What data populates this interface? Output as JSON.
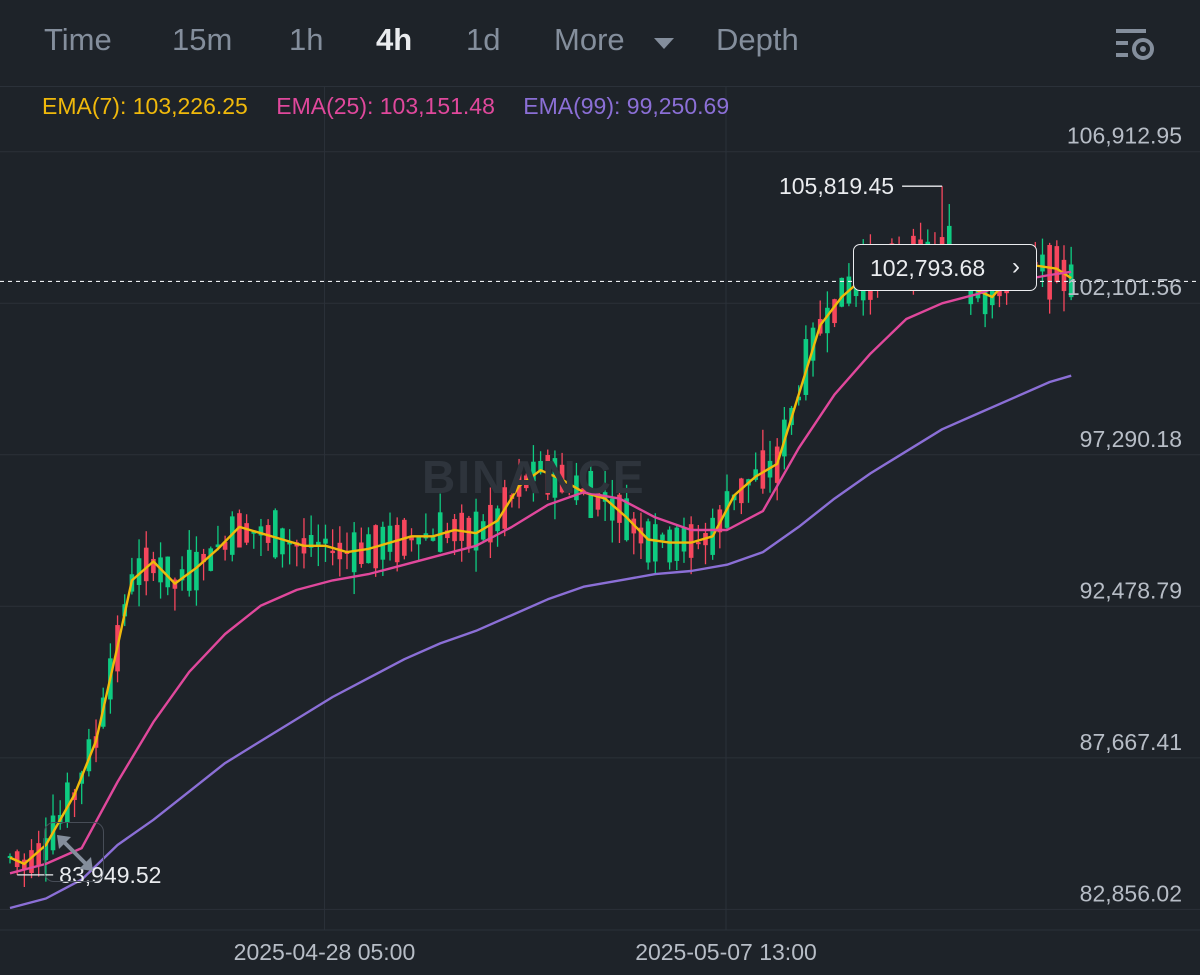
{
  "toolbar": {
    "tabs": [
      "Time",
      "15m",
      "1h",
      "4h",
      "1d",
      "More",
      "Depth"
    ],
    "active_tab": "4h"
  },
  "icons": {
    "more_dropdown": "chevron-down-icon",
    "settings": "chart-settings-icon",
    "expand": "expand-arrows-icon",
    "price_tag_chevron": "chevron-right-icon",
    "watermark": "binance-logo-watermark"
  },
  "watermark": "BINANCE",
  "ema_legend": {
    "ema7": "EMA(7): 103,226.25",
    "ema25": "EMA(25): 103,151.48",
    "ema99": "EMA(99): 99,250.69"
  },
  "price_tag": {
    "value": "102,793.68",
    "chevron": "›"
  },
  "colors": {
    "background": "#1e2329",
    "up": "#0ecb81",
    "down": "#f6465d",
    "ema7": "#f0b90b",
    "ema25": "#e0489c",
    "ema99": "#8b6fd6",
    "axis_text": "#b7bdc6",
    "grid": "#2b3139"
  },
  "chart_data": {
    "type": "candlestick",
    "interval": "4h",
    "y_ticks": [
      "106,912.95",
      "102,101.56",
      "97,290.18",
      "92,478.79",
      "87,667.41",
      "82,856.02"
    ],
    "y_tick_values": [
      106912.95,
      102101.56,
      97290.18,
      92478.79,
      87667.41,
      82856.02
    ],
    "ylim": [
      82200,
      109000
    ],
    "x_ticks": [
      "2025-04-28 05:00",
      "2025-05-07 13:00"
    ],
    "x_tick_index": [
      44,
      100
    ],
    "max_label": "105,819.45",
    "max_value": 105819.45,
    "max_index": 130,
    "min_label": "83,949.52",
    "min_value": 83949.52,
    "min_index": 1,
    "current_price": 102793.68,
    "series": [
      {
        "name": "EMA(7)",
        "color": "#f0b90b",
        "points": [
          [
            0,
            84500
          ],
          [
            2,
            84300
          ],
          [
            5,
            84900
          ],
          [
            9,
            86500
          ],
          [
            12,
            88200
          ],
          [
            15,
            91200
          ],
          [
            17,
            93300
          ],
          [
            20,
            93900
          ],
          [
            23,
            93200
          ],
          [
            26,
            93700
          ],
          [
            29,
            94300
          ],
          [
            32,
            95000
          ],
          [
            35,
            94800
          ],
          [
            38,
            94600
          ],
          [
            41,
            94400
          ],
          [
            44,
            94400
          ],
          [
            47,
            94200
          ],
          [
            50,
            94300
          ],
          [
            53,
            94500
          ],
          [
            56,
            94700
          ],
          [
            59,
            94700
          ],
          [
            62,
            94900
          ],
          [
            65,
            94800
          ],
          [
            68,
            95200
          ],
          [
            71,
            96300
          ],
          [
            74,
            96800
          ],
          [
            77,
            96500
          ],
          [
            80,
            96100
          ],
          [
            83,
            95900
          ],
          [
            86,
            95300
          ],
          [
            89,
            94600
          ],
          [
            92,
            94500
          ],
          [
            95,
            94500
          ],
          [
            98,
            94700
          ],
          [
            101,
            96000
          ],
          [
            104,
            96600
          ],
          [
            107,
            97000
          ],
          [
            110,
            99200
          ],
          [
            113,
            101400
          ],
          [
            116,
            102300
          ],
          [
            119,
            102900
          ],
          [
            122,
            103200
          ],
          [
            125,
            103500
          ],
          [
            128,
            103700
          ],
          [
            131,
            103700
          ],
          [
            134,
            102600
          ],
          [
            137,
            102300
          ],
          [
            140,
            103100
          ],
          [
            143,
            103300
          ],
          [
            146,
            103200
          ],
          [
            148,
            102900
          ]
        ]
      },
      {
        "name": "EMA(25)",
        "color": "#e0489c",
        "points": [
          [
            0,
            84000
          ],
          [
            5,
            84300
          ],
          [
            10,
            84800
          ],
          [
            15,
            86900
          ],
          [
            20,
            88800
          ],
          [
            25,
            90400
          ],
          [
            30,
            91600
          ],
          [
            35,
            92500
          ],
          [
            40,
            93000
          ],
          [
            45,
            93300
          ],
          [
            50,
            93500
          ],
          [
            55,
            93800
          ],
          [
            60,
            94100
          ],
          [
            65,
            94400
          ],
          [
            70,
            95000
          ],
          [
            75,
            95700
          ],
          [
            80,
            96100
          ],
          [
            85,
            95900
          ],
          [
            90,
            95300
          ],
          [
            95,
            94900
          ],
          [
            100,
            94900
          ],
          [
            105,
            95500
          ],
          [
            110,
            97500
          ],
          [
            115,
            99200
          ],
          [
            120,
            100500
          ],
          [
            125,
            101600
          ],
          [
            130,
            102100
          ],
          [
            135,
            102400
          ],
          [
            140,
            102800
          ],
          [
            145,
            103000
          ],
          [
            148,
            103100
          ]
        ]
      },
      {
        "name": "EMA(99)",
        "color": "#8b6fd6",
        "points": [
          [
            0,
            82900
          ],
          [
            5,
            83200
          ],
          [
            10,
            83800
          ],
          [
            15,
            84900
          ],
          [
            20,
            85700
          ],
          [
            25,
            86600
          ],
          [
            30,
            87500
          ],
          [
            35,
            88200
          ],
          [
            40,
            88900
          ],
          [
            45,
            89600
          ],
          [
            50,
            90200
          ],
          [
            55,
            90800
          ],
          [
            60,
            91300
          ],
          [
            65,
            91700
          ],
          [
            70,
            92200
          ],
          [
            75,
            92700
          ],
          [
            80,
            93100
          ],
          [
            85,
            93300
          ],
          [
            90,
            93500
          ],
          [
            95,
            93600
          ],
          [
            100,
            93800
          ],
          [
            105,
            94200
          ],
          [
            110,
            95000
          ],
          [
            115,
            95900
          ],
          [
            120,
            96700
          ],
          [
            125,
            97400
          ],
          [
            130,
            98100
          ],
          [
            135,
            98600
          ],
          [
            140,
            99100
          ],
          [
            145,
            99600
          ],
          [
            148,
            99800
          ]
        ]
      }
    ]
  }
}
